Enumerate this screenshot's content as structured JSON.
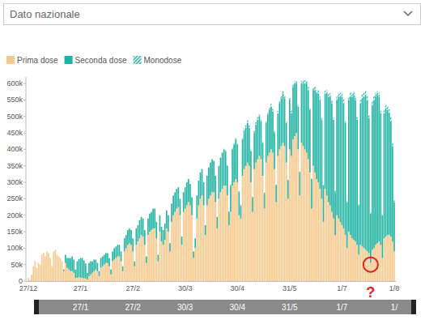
{
  "chart_data": {
    "type": "bar",
    "dropdown": "Dato nazionale",
    "stacked": true,
    "legend": "top-left",
    "grid": false,
    "ylim": [
      0,
      620000
    ],
    "yticks": [
      0,
      {
        "value": 50000,
        "label": "50k"
      },
      {
        "value": 100000,
        "label": "100k"
      },
      {
        "value": 150000,
        "label": "150k"
      },
      {
        "value": 200000,
        "label": "200k"
      },
      {
        "value": 250000,
        "label": "250k"
      },
      {
        "value": 300000,
        "label": "300k"
      },
      {
        "value": 350000,
        "label": "350k"
      },
      {
        "value": 400000,
        "label": "400k"
      },
      {
        "value": 450000,
        "label": "450k"
      },
      {
        "value": 500000,
        "label": "500k"
      },
      {
        "value": 550000,
        "label": "550k"
      },
      {
        "value": 600000,
        "label": "600k"
      }
    ],
    "annotations": [
      {
        "text": "?",
        "color": "#d9261c"
      }
    ],
    "slider_labels": [
      "27/1",
      "27/2",
      "30/3",
      "30/4",
      "31/5",
      "1/7",
      "1/"
    ],
    "categories": [
      "27/12",
      null,
      null,
      null,
      null,
      null,
      null,
      null,
      null,
      null,
      null,
      null,
      null,
      null,
      null,
      null,
      null,
      null,
      null,
      null,
      null,
      null,
      null,
      null,
      null,
      null,
      null,
      null,
      null,
      null,
      null,
      "27/1",
      null,
      null,
      null,
      null,
      null,
      null,
      null,
      null,
      null,
      null,
      null,
      null,
      null,
      null,
      null,
      null,
      null,
      null,
      null,
      null,
      null,
      null,
      null,
      null,
      null,
      null,
      null,
      null,
      null,
      null,
      "27/2",
      null,
      null,
      null,
      null,
      null,
      null,
      null,
      null,
      null,
      null,
      null,
      null,
      null,
      null,
      null,
      null,
      null,
      null,
      null,
      null,
      null,
      null,
      null,
      null,
      null,
      null,
      null,
      null,
      null,
      null,
      "30/3",
      null,
      null,
      null,
      null,
      null,
      null,
      null,
      null,
      null,
      null,
      null,
      null,
      null,
      null,
      null,
      null,
      null,
      null,
      null,
      null,
      null,
      null,
      null,
      null,
      null,
      null,
      null,
      null,
      null,
      null,
      "30/4",
      null,
      null,
      null,
      null,
      null,
      null,
      null,
      null,
      null,
      null,
      null,
      null,
      null,
      null,
      null,
      null,
      null,
      null,
      null,
      null,
      null,
      null,
      null,
      null,
      null,
      null,
      null,
      null,
      null,
      null,
      "31/5",
      null,
      null,
      null,
      null,
      null,
      null,
      null,
      null,
      null,
      null,
      null,
      null,
      null,
      null,
      null,
      null,
      null,
      null,
      null,
      null,
      null,
      null,
      null,
      null,
      null,
      null,
      null,
      null,
      null,
      null,
      "1/7",
      null,
      null,
      null,
      null,
      null,
      null,
      null,
      null,
      null,
      null,
      null,
      null,
      null,
      null,
      null,
      null,
      null,
      null,
      null,
      null,
      null,
      null,
      null,
      null,
      null,
      null,
      null,
      null,
      null,
      null,
      "1/8"
    ],
    "series": [
      {
        "name": "Prima dose",
        "color": "#f8c98d",
        "values": [
          9000,
          4000,
          20000,
          45000,
          60000,
          40000,
          55000,
          50000,
          80000,
          85000,
          75000,
          90000,
          85000,
          70000,
          45000,
          90000,
          95000,
          80000,
          75000,
          70000,
          60000,
          30000,
          55000,
          40000,
          35000,
          30000,
          30000,
          25000,
          10000,
          10000,
          12000,
          10000,
          10000,
          8000,
          8000,
          5000,
          15000,
          20000,
          25000,
          30000,
          35000,
          30000,
          15000,
          40000,
          45000,
          50000,
          55000,
          55000,
          45000,
          20000,
          60000,
          65000,
          70000,
          75000,
          75000,
          60000,
          30000,
          90000,
          100000,
          110000,
          115000,
          110000,
          90000,
          45000,
          110000,
          120000,
          130000,
          140000,
          135000,
          110000,
          55000,
          140000,
          150000,
          155000,
          160000,
          160000,
          130000,
          60000,
          150000,
          120000,
          110000,
          125000,
          160000,
          150000,
          90000,
          180000,
          200000,
          210000,
          220000,
          225000,
          200000,
          110000,
          210000,
          220000,
          230000,
          240000,
          230000,
          200000,
          70000,
          100000,
          190000,
          230000,
          250000,
          260000,
          230000,
          140000,
          230000,
          250000,
          260000,
          270000,
          270000,
          240000,
          160000,
          250000,
          270000,
          280000,
          290000,
          290000,
          260000,
          170000,
          210000,
          290000,
          300000,
          310000,
          300000,
          200000,
          190000,
          320000,
          340000,
          350000,
          360000,
          350000,
          300000,
          210000,
          340000,
          360000,
          370000,
          380000,
          370000,
          320000,
          220000,
          360000,
          380000,
          390000,
          400000,
          390000,
          340000,
          240000,
          380000,
          400000,
          410000,
          420000,
          410000,
          360000,
          250000,
          400000,
          380000,
          430000,
          440000,
          450000,
          400000,
          260000,
          420000,
          410000,
          400000,
          390000,
          370000,
          330000,
          220000,
          350000,
          330000,
          310000,
          300000,
          280000,
          250000,
          180000,
          280000,
          260000,
          240000,
          230000,
          210000,
          190000,
          140000,
          200000,
          190000,
          180000,
          170000,
          160000,
          140000,
          100000,
          150000,
          140000,
          130000,
          125000,
          120000,
          110000,
          80000,
          110000,
          105000,
          100000,
          95000,
          90000,
          85000,
          55000,
          95000,
          100000,
          110000,
          115000,
          120000,
          110000,
          70000,
          130000,
          135000,
          140000,
          140000,
          135000,
          120000,
          90000
        ]
      },
      {
        "name": "Seconda dose",
        "color": "#1fb3a3",
        "values": [
          0,
          0,
          0,
          0,
          0,
          0,
          0,
          0,
          0,
          0,
          0,
          0,
          0,
          0,
          0,
          0,
          0,
          0,
          0,
          0,
          0,
          5000,
          25000,
          30000,
          35000,
          40000,
          45000,
          40000,
          25000,
          50000,
          55000,
          60000,
          60000,
          55000,
          45000,
          20000,
          40000,
          40000,
          35000,
          35000,
          30000,
          25000,
          15000,
          30000,
          30000,
          30000,
          30000,
          30000,
          25000,
          15000,
          30000,
          35000,
          35000,
          35000,
          35000,
          30000,
          15000,
          40000,
          40000,
          45000,
          45000,
          45000,
          40000,
          15000,
          50000,
          50000,
          55000,
          55000,
          55000,
          45000,
          20000,
          50000,
          55000,
          55000,
          60000,
          60000,
          50000,
          20000,
          50000,
          45000,
          45000,
          50000,
          55000,
          50000,
          25000,
          55000,
          60000,
          60000,
          60000,
          60000,
          50000,
          25000,
          60000,
          65000,
          70000,
          70000,
          65000,
          55000,
          20000,
          30000,
          70000,
          75000,
          80000,
          80000,
          70000,
          30000,
          90000,
          95000,
          100000,
          100000,
          95000,
          80000,
          35000,
          100000,
          105000,
          110000,
          110000,
          105000,
          90000,
          40000,
          80000,
          110000,
          115000,
          120000,
          115000,
          70000,
          40000,
          110000,
          115000,
          115000,
          120000,
          115000,
          95000,
          45000,
          110000,
          115000,
          120000,
          120000,
          115000,
          100000,
          45000,
          120000,
          125000,
          130000,
          130000,
          125000,
          110000,
          50000,
          130000,
          140000,
          145000,
          150000,
          145000,
          120000,
          55000,
          150000,
          130000,
          160000,
          160000,
          150000,
          130000,
          70000,
          180000,
          190000,
          200000,
          210000,
          210000,
          190000,
          90000,
          230000,
          250000,
          260000,
          270000,
          270000,
          240000,
          110000,
          290000,
          310000,
          320000,
          330000,
          330000,
          300000,
          130000,
          350000,
          370000,
          380000,
          390000,
          380000,
          340000,
          140000,
          400000,
          420000,
          430000,
          440000,
          430000,
          380000,
          150000,
          430000,
          450000,
          460000,
          470000,
          460000,
          410000,
          150000,
          440000,
          450000,
          450000,
          450000,
          440000,
          400000,
          130000,
          380000,
          390000,
          380000,
          370000,
          350000,
          290000,
          150000
        ]
      },
      {
        "name": "Monodose",
        "color": "#1fb3a3",
        "line_style": "hatched",
        "values": [
          0,
          0,
          0,
          0,
          0,
          0,
          0,
          0,
          0,
          0,
          0,
          0,
          0,
          0,
          0,
          0,
          0,
          0,
          0,
          0,
          0,
          0,
          0,
          0,
          0,
          0,
          0,
          0,
          0,
          0,
          0,
          0,
          0,
          0,
          0,
          0,
          0,
          0,
          0,
          0,
          0,
          0,
          0,
          0,
          0,
          0,
          0,
          0,
          0,
          0,
          0,
          0,
          0,
          0,
          0,
          0,
          0,
          0,
          0,
          0,
          0,
          0,
          0,
          0,
          0,
          0,
          0,
          0,
          0,
          0,
          0,
          0,
          0,
          0,
          0,
          0,
          0,
          0,
          0,
          0,
          0,
          0,
          0,
          0,
          0,
          0,
          0,
          0,
          0,
          0,
          0,
          0,
          0,
          0,
          0,
          0,
          0,
          0,
          0,
          0,
          0,
          0,
          0,
          0,
          0,
          0,
          0,
          0,
          0,
          0,
          0,
          0,
          0,
          0,
          0,
          0,
          2000,
          3000,
          2000,
          2000,
          4000,
          5000,
          5000,
          5000,
          5000,
          3000,
          3000,
          6000,
          8000,
          8000,
          8000,
          8000,
          5000,
          3000,
          6000,
          8000,
          8000,
          8000,
          8000,
          5000,
          3000,
          6000,
          8000,
          8000,
          8000,
          8000,
          5000,
          3000,
          6000,
          8000,
          8000,
          8000,
          8000,
          5000,
          3000,
          6000,
          8000,
          8000,
          8000,
          8000,
          5000,
          3000,
          8000,
          10000,
          10000,
          10000,
          10000,
          6000,
          3000,
          8000,
          10000,
          10000,
          10000,
          10000,
          6000,
          3000,
          8000,
          10000,
          10000,
          10000,
          10000,
          6000,
          4000,
          10000,
          12000,
          12000,
          12000,
          12000,
          8000,
          4000,
          10000,
          12000,
          12000,
          12000,
          12000,
          8000,
          4000,
          10000,
          12000,
          12000,
          12000,
          12000,
          8000,
          4000,
          10000,
          12000,
          12000,
          12000,
          12000,
          8000,
          4000,
          10000,
          12000,
          12000,
          12000,
          12000,
          8000,
          5000
        ]
      }
    ]
  }
}
